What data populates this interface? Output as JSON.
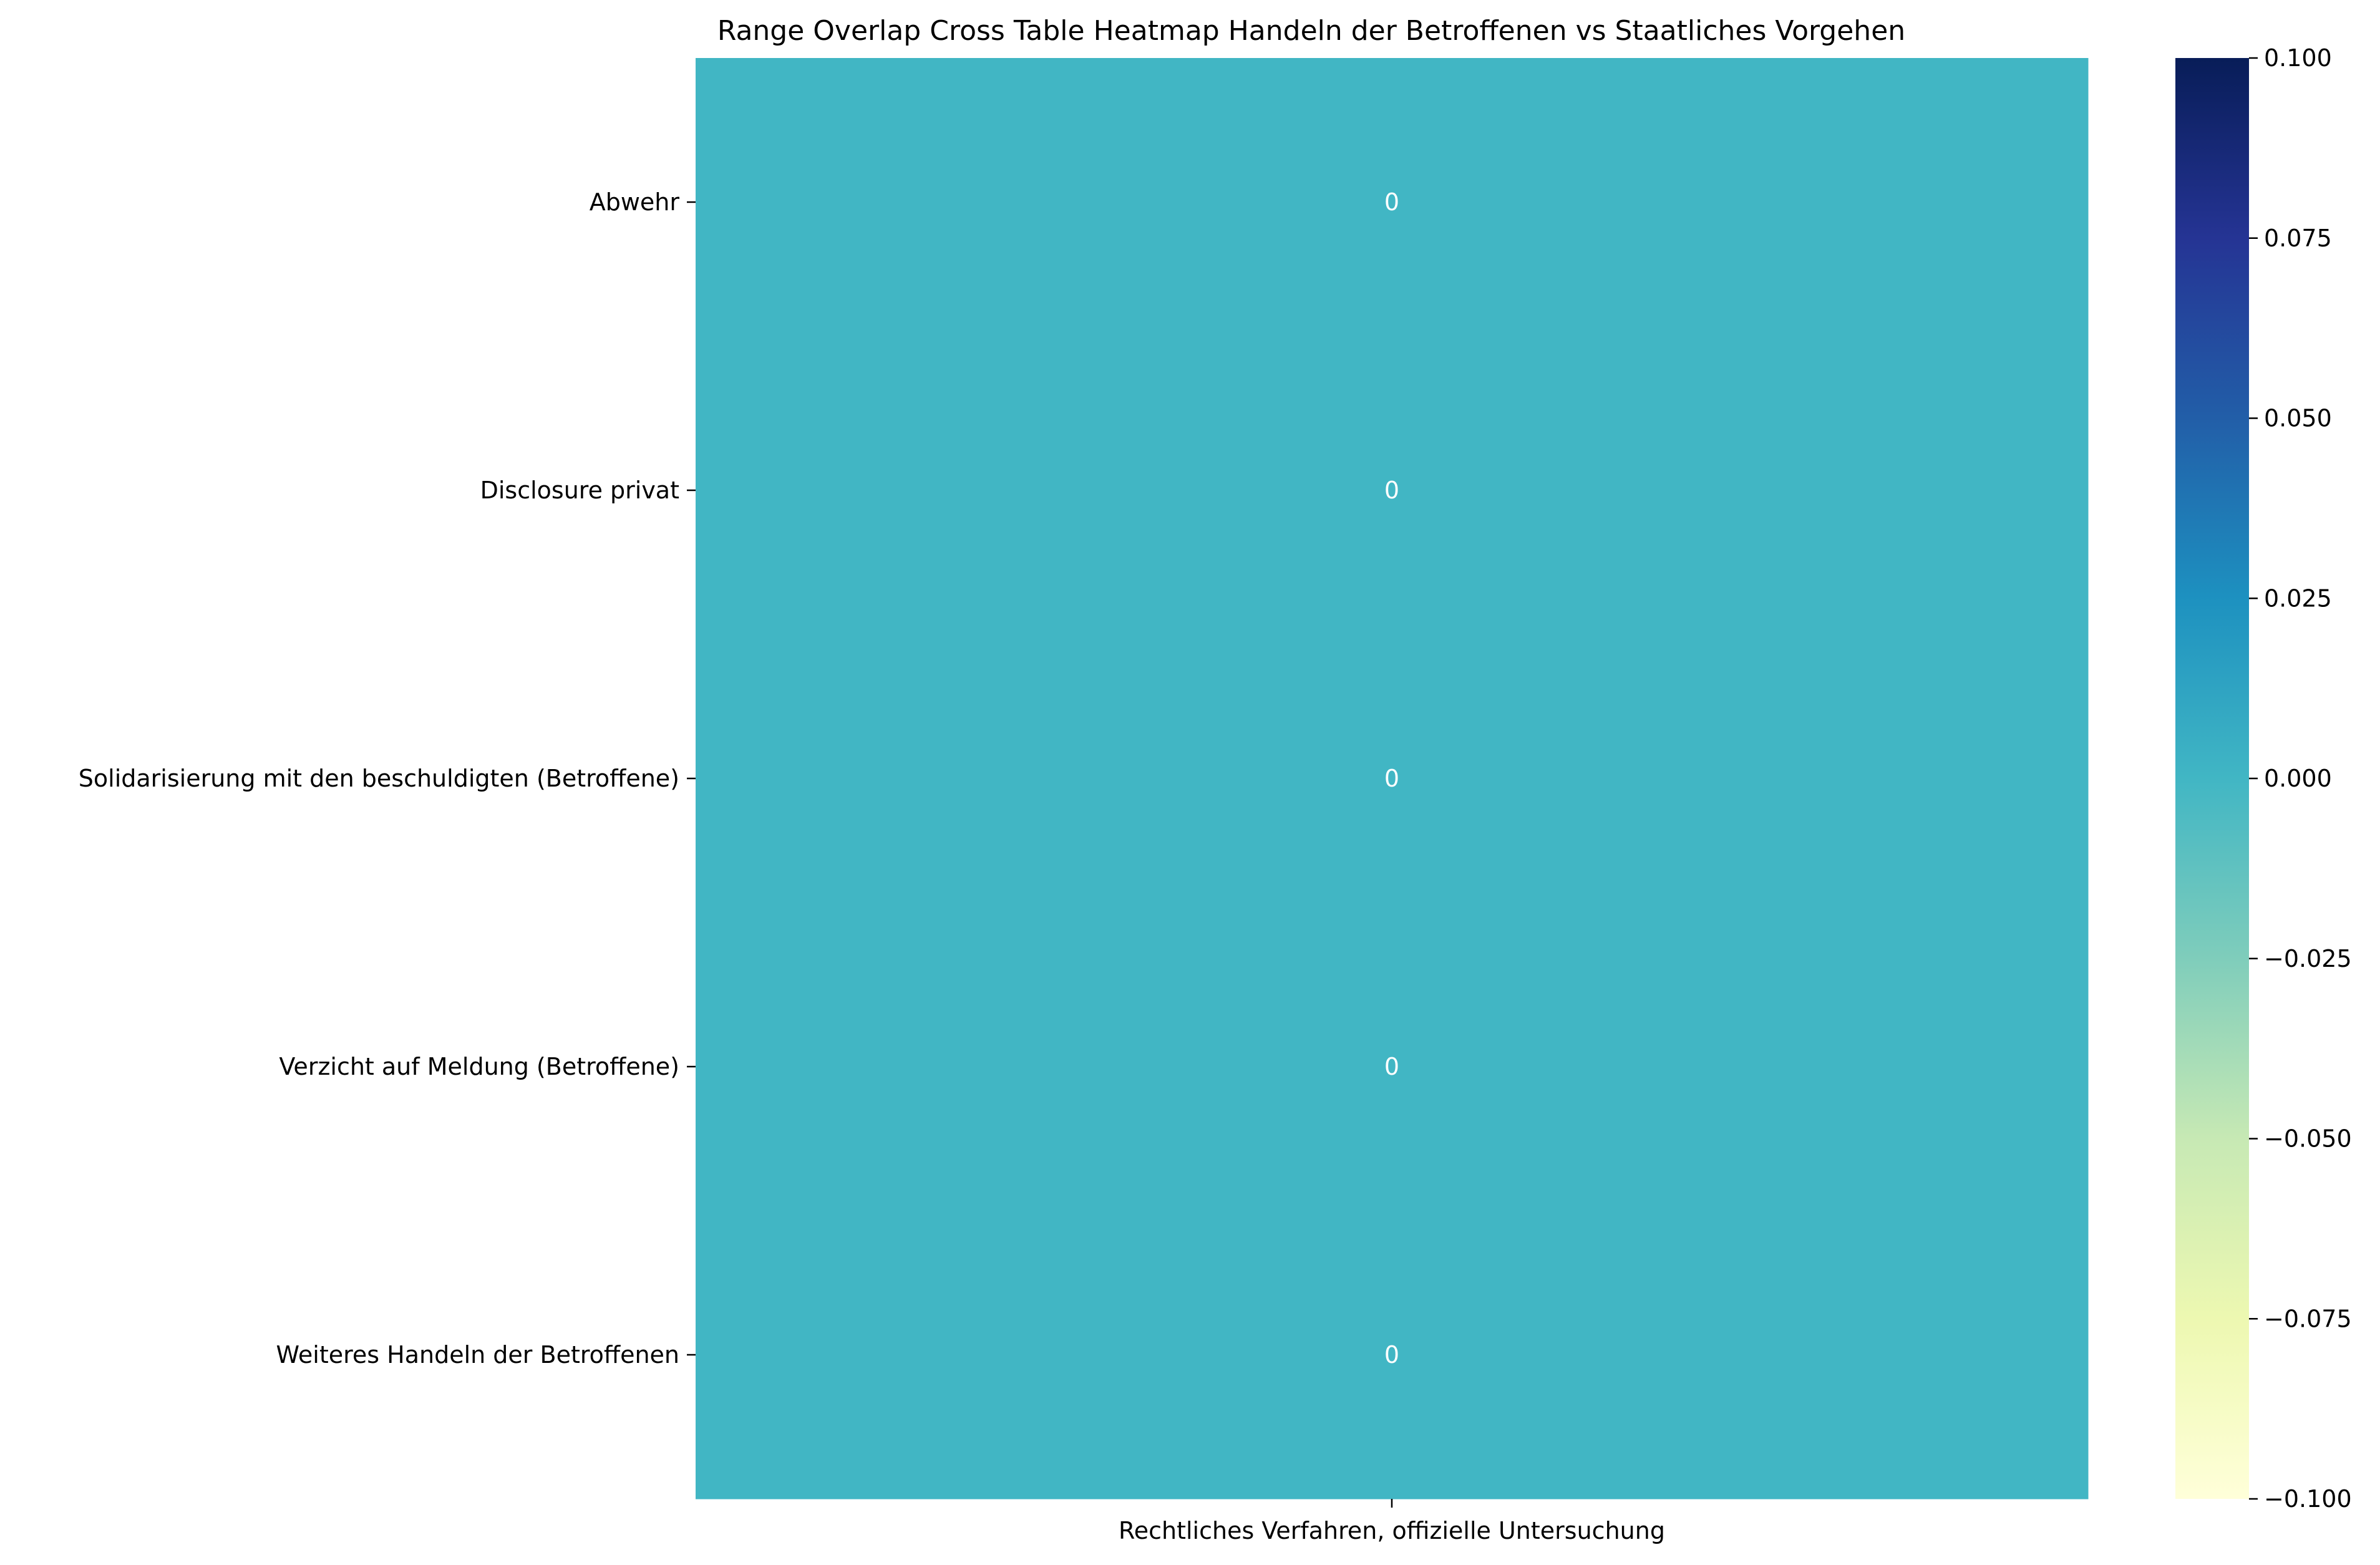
{
  "chart_data": {
    "type": "heatmap",
    "title": "Range Overlap Cross Table Heatmap Handeln der Betroffenen vs Staatliches Vorgehen",
    "xlabel": "",
    "ylabel": "",
    "x_categories": [
      "Rechtliches Verfahren, offizielle Untersuchung"
    ],
    "y_categories": [
      "Abwehr",
      "Disclosure privat",
      "Solidarisierung mit den beschuldigten (Betroffene)",
      "Verzicht auf Meldung (Betroffene)",
      "Weiteres Handeln der Betroffenen"
    ],
    "values": [
      [
        0
      ],
      [
        0
      ],
      [
        0
      ],
      [
        0
      ],
      [
        0
      ]
    ],
    "annotations": [
      [
        "0"
      ],
      [
        "0"
      ],
      [
        "0"
      ],
      [
        "0"
      ],
      [
        "0"
      ]
    ],
    "colorbar": {
      "colormap": "YlGnBu",
      "range": [
        -0.1,
        0.1
      ],
      "ticks": [
        -0.1,
        -0.075,
        -0.05,
        -0.025,
        0.0,
        0.025,
        0.05,
        0.075,
        0.1
      ],
      "tick_labels": [
        "−0.100",
        "−0.075",
        "−0.050",
        "−0.025",
        "0.000",
        "0.025",
        "0.050",
        "0.075",
        "0.100"
      ],
      "gradient_colors": [
        "#ffffd9",
        "#edf8b1",
        "#c7e9b4",
        "#7fcdbb",
        "#41b6c4",
        "#1d91c0",
        "#225ea8",
        "#253494",
        "#081d58"
      ]
    },
    "cell_color": "#41b6c4",
    "annotation_color": "#ffffff"
  }
}
